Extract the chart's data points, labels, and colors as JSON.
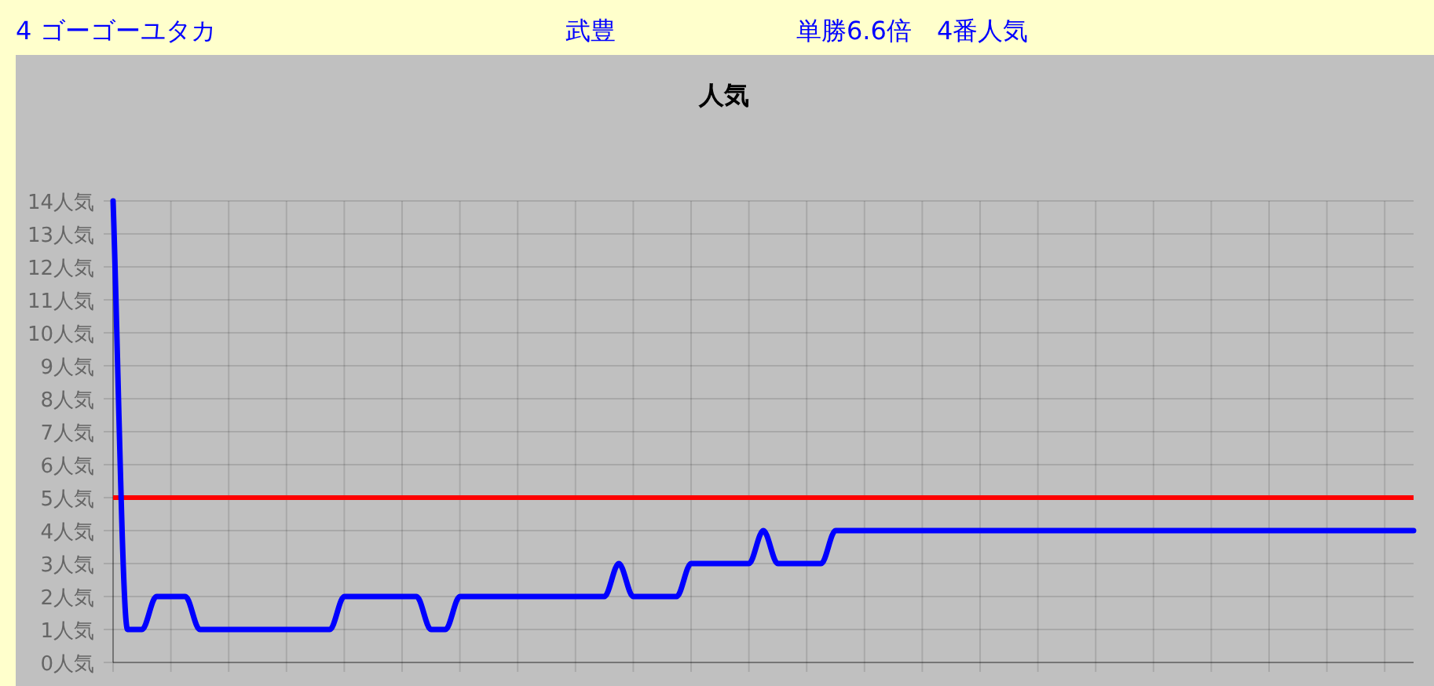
{
  "chart_data": {
    "type": "line",
    "title": "人気",
    "annotations": [
      "4 ゴーゴーユタカ",
      "武豊",
      "単勝6.6倍　4番人気"
    ],
    "categories": [
      null,
      null,
      null,
      null,
      null,
      null,
      null,
      null,
      null,
      null,
      null,
      null,
      null,
      null,
      null,
      null,
      null,
      null,
      null,
      null,
      null,
      null,
      null,
      null,
      null,
      null,
      null,
      null,
      null,
      null,
      null,
      null,
      null,
      null,
      null,
      null,
      null,
      null,
      null,
      null,
      null,
      null,
      null,
      null,
      null,
      null,
      null,
      null,
      null,
      null,
      null,
      null,
      null,
      null,
      null,
      null,
      null,
      null,
      null,
      null,
      null,
      null,
      null,
      null,
      null,
      null,
      null,
      null,
      null,
      null,
      null,
      null,
      null,
      null,
      null,
      null,
      null,
      null,
      null,
      null,
      null,
      null,
      null,
      null,
      null,
      null,
      null,
      null,
      null,
      null,
      null
    ],
    "series": [
      {
        "color": "#0000ff",
        "values": [
          14,
          1,
          1,
          2,
          2,
          2,
          1,
          1,
          1,
          1,
          1,
          1,
          1,
          1,
          1,
          1,
          2,
          2,
          2,
          2,
          2,
          2,
          1,
          1,
          2,
          2,
          2,
          2,
          2,
          2,
          2,
          2,
          2,
          2,
          2,
          3,
          2,
          2,
          2,
          2,
          3,
          3,
          3,
          3,
          3,
          4,
          3,
          3,
          3,
          3,
          4,
          4,
          4,
          4,
          4,
          4,
          4,
          4,
          4,
          4,
          4,
          4,
          4,
          4,
          4,
          4,
          4,
          4,
          4,
          4,
          4,
          4,
          4,
          4,
          4,
          4,
          4,
          4,
          4,
          4,
          4,
          4,
          4,
          4,
          4,
          4,
          4,
          4,
          4,
          4,
          4
        ]
      }
    ],
    "ref_lines": [
      {
        "axis": "y",
        "value": 5,
        "color": "#ff0000"
      }
    ],
    "ylim": [
      0,
      14
    ],
    "yticks": [
      {
        "value": 0,
        "label": "0人気"
      },
      {
        "value": 1,
        "label": "1人気"
      },
      {
        "value": 2,
        "label": "2人気"
      },
      {
        "value": 3,
        "label": "3人気"
      },
      {
        "value": 4,
        "label": "4人気"
      },
      {
        "value": 5,
        "label": "5人気"
      },
      {
        "value": 6,
        "label": "6人気"
      },
      {
        "value": 7,
        "label": "7人気"
      },
      {
        "value": 8,
        "label": "8人気"
      },
      {
        "value": 9,
        "label": "9人気"
      },
      {
        "value": 10,
        "label": "10人気"
      },
      {
        "value": 11,
        "label": "11人気"
      },
      {
        "value": 12,
        "label": "12人気"
      },
      {
        "value": 13,
        "label": "13人気"
      },
      {
        "value": 14,
        "label": "14人気"
      }
    ],
    "grid": true,
    "tick_labels": "y",
    "marker": "none",
    "line_style": "solid"
  }
}
